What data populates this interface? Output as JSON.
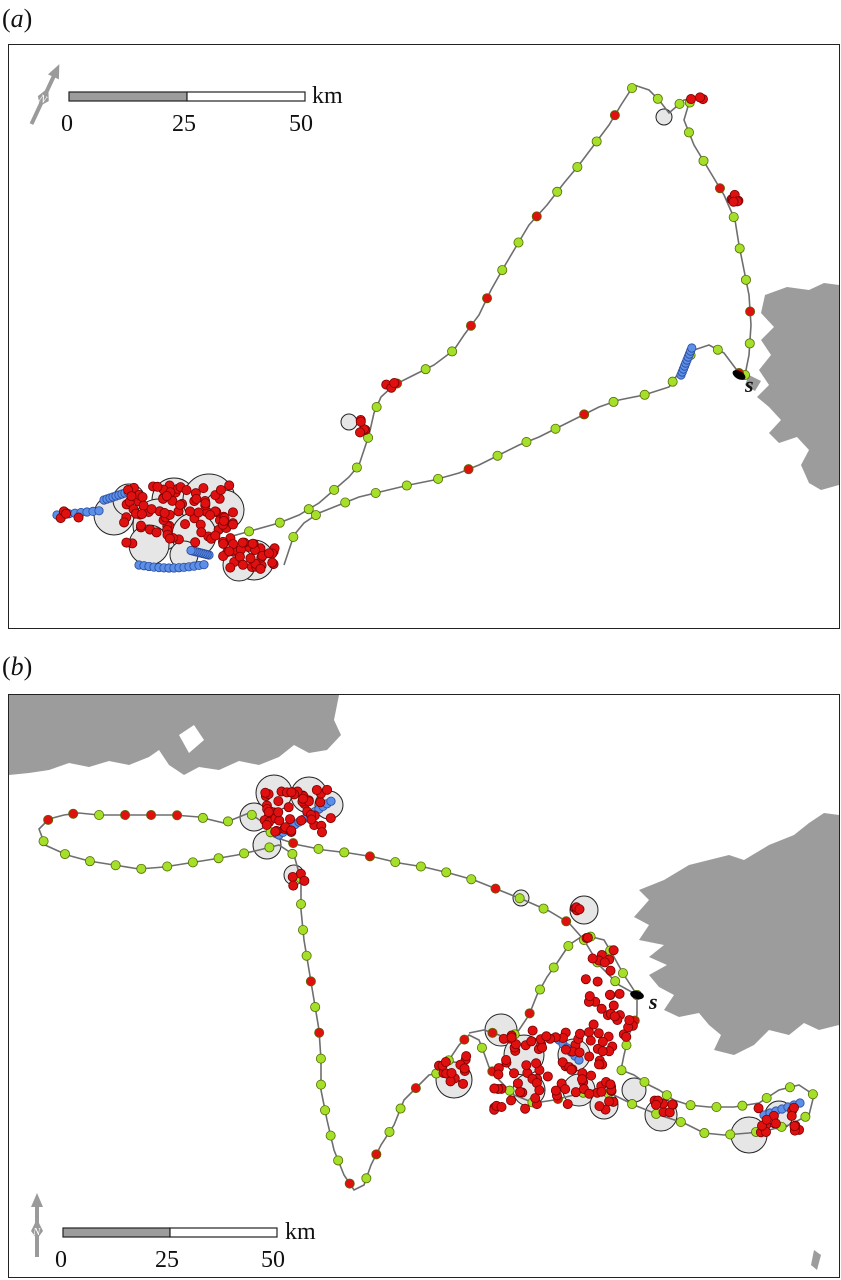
{
  "panels": [
    {
      "id": "a",
      "label_open": "(",
      "label_letter": "a",
      "label_close": ")",
      "scale_unit": "km",
      "scale_ticks": [
        "0",
        "25",
        "50"
      ],
      "north_letter": "N",
      "site_letter": "s"
    },
    {
      "id": "b",
      "label_open": "(",
      "label_letter": "b",
      "label_close": ")",
      "scale_unit": "km",
      "scale_ticks": [
        "0",
        "25",
        "50"
      ],
      "north_letter": "N",
      "site_letter": "s"
    }
  ],
  "legend_colors": {
    "land": "#9c9c9c",
    "track_line": "#6e6e6e",
    "transit_point": "#a4e02a",
    "foraging_point": "#e01010",
    "resting_point": "#5b8fe8",
    "area_circle_fill": "#e6e6e6",
    "colony": "#000000"
  }
}
